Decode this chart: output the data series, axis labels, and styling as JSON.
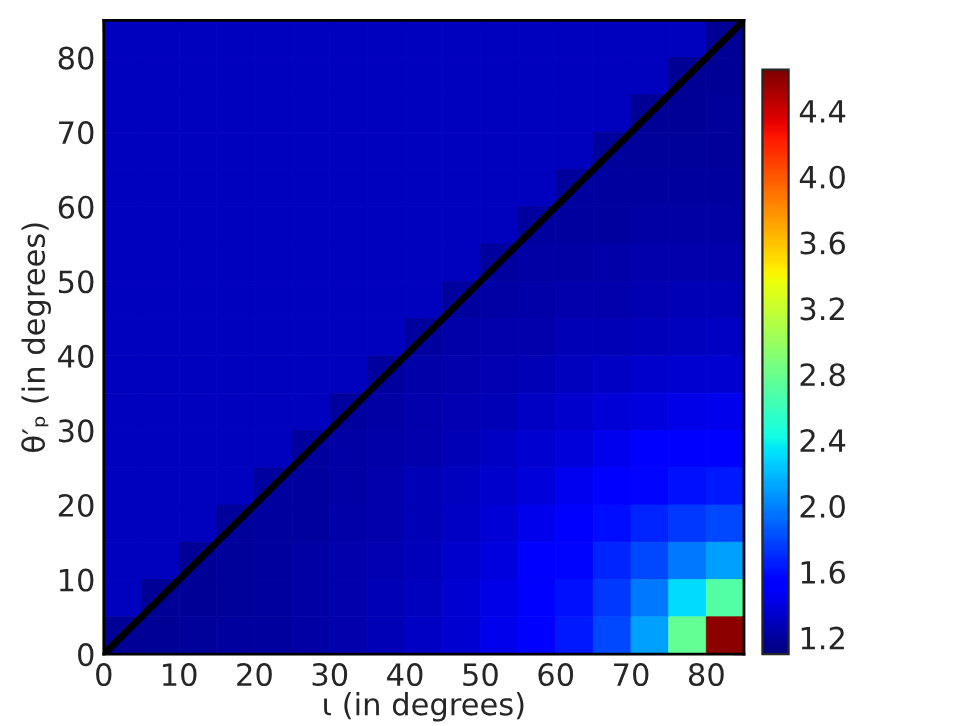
{
  "chart_data": {
    "type": "heatmap",
    "xlabel": "ι (in degrees)",
    "ylabel": "θ′ₚ (in degrees)",
    "x": [
      2.5,
      7.5,
      12.5,
      17.5,
      22.5,
      27.5,
      32.5,
      37.5,
      42.5,
      47.5,
      52.5,
      57.5,
      62.5,
      67.5,
      72.5,
      77.5,
      82.5
    ],
    "y": [
      82.5,
      77.5,
      72.5,
      67.5,
      62.5,
      57.5,
      52.5,
      47.5,
      42.5,
      37.5,
      32.5,
      27.5,
      22.5,
      17.5,
      12.5,
      7.5,
      2.5
    ],
    "cells": [
      [
        1.3,
        1.3,
        1.3,
        1.3,
        1.3,
        1.3,
        1.3,
        1.3,
        1.3,
        1.3,
        1.3,
        1.3,
        1.3,
        1.3,
        1.3,
        1.3,
        1.17
      ],
      [
        1.3,
        1.3,
        1.3,
        1.3,
        1.3,
        1.3,
        1.3,
        1.3,
        1.3,
        1.3,
        1.3,
        1.3,
        1.3,
        1.3,
        1.3,
        1.18,
        1.18
      ],
      [
        1.3,
        1.3,
        1.3,
        1.3,
        1.3,
        1.3,
        1.3,
        1.3,
        1.3,
        1.3,
        1.3,
        1.3,
        1.3,
        1.3,
        1.18,
        1.18,
        1.19
      ],
      [
        1.3,
        1.3,
        1.3,
        1.3,
        1.3,
        1.3,
        1.3,
        1.3,
        1.3,
        1.3,
        1.3,
        1.3,
        1.3,
        1.19,
        1.19,
        1.19,
        1.19
      ],
      [
        1.3,
        1.3,
        1.3,
        1.3,
        1.3,
        1.3,
        1.3,
        1.3,
        1.3,
        1.3,
        1.3,
        1.3,
        1.2,
        1.2,
        1.2,
        1.21,
        1.21
      ],
      [
        1.3,
        1.3,
        1.3,
        1.3,
        1.3,
        1.3,
        1.3,
        1.3,
        1.3,
        1.3,
        1.3,
        1.2,
        1.21,
        1.21,
        1.22,
        1.22,
        1.22
      ],
      [
        1.3,
        1.3,
        1.3,
        1.3,
        1.3,
        1.3,
        1.3,
        1.3,
        1.3,
        1.3,
        1.21,
        1.22,
        1.22,
        1.23,
        1.24,
        1.24,
        1.24
      ],
      [
        1.3,
        1.3,
        1.3,
        1.3,
        1.3,
        1.3,
        1.3,
        1.3,
        1.3,
        1.21,
        1.22,
        1.23,
        1.24,
        1.25,
        1.26,
        1.27,
        1.27
      ],
      [
        1.3,
        1.3,
        1.3,
        1.3,
        1.3,
        1.3,
        1.3,
        1.3,
        1.21,
        1.23,
        1.24,
        1.25,
        1.27,
        1.28,
        1.29,
        1.3,
        1.31
      ],
      [
        1.3,
        1.3,
        1.3,
        1.3,
        1.3,
        1.3,
        1.3,
        1.21,
        1.23,
        1.24,
        1.26,
        1.28,
        1.3,
        1.32,
        1.34,
        1.35,
        1.36
      ],
      [
        1.3,
        1.3,
        1.3,
        1.3,
        1.3,
        1.3,
        1.21,
        1.22,
        1.24,
        1.26,
        1.28,
        1.31,
        1.34,
        1.37,
        1.4,
        1.43,
        1.44
      ],
      [
        1.3,
        1.3,
        1.3,
        1.3,
        1.3,
        1.2,
        1.22,
        1.23,
        1.25,
        1.28,
        1.31,
        1.35,
        1.39,
        1.44,
        1.5,
        1.52,
        1.54
      ],
      [
        1.3,
        1.3,
        1.3,
        1.3,
        1.2,
        1.21,
        1.22,
        1.24,
        1.27,
        1.3,
        1.34,
        1.39,
        1.46,
        1.52,
        1.57,
        1.61,
        1.64
      ],
      [
        1.3,
        1.3,
        1.3,
        1.19,
        1.2,
        1.21,
        1.23,
        1.25,
        1.28,
        1.32,
        1.37,
        1.44,
        1.52,
        1.59,
        1.67,
        1.75,
        1.8
      ],
      [
        1.3,
        1.3,
        1.18,
        1.19,
        1.2,
        1.22,
        1.24,
        1.26,
        1.29,
        1.34,
        1.4,
        1.5,
        1.57,
        1.67,
        1.8,
        1.96,
        2.1
      ],
      [
        1.3,
        1.18,
        1.18,
        1.19,
        1.21,
        1.22,
        1.24,
        1.27,
        1.3,
        1.35,
        1.43,
        1.52,
        1.61,
        1.75,
        1.96,
        2.31,
        2.7
      ],
      [
        1.17,
        1.18,
        1.19,
        1.2,
        1.21,
        1.22,
        1.24,
        1.27,
        1.31,
        1.36,
        1.44,
        1.54,
        1.64,
        1.8,
        2.1,
        2.77,
        4.6
      ]
    ],
    "clim": [
      1.1,
      4.65
    ],
    "cticks": [
      1.2,
      1.6,
      {
        "value": 2,
        "label": "2.0"
      },
      2.4,
      2.8,
      3.2,
      3.6,
      {
        "value": 4,
        "label": "4.0"
      },
      4.4
    ],
    "xlim": [
      0,
      85
    ],
    "ylim": [
      0,
      85
    ],
    "xticks": [
      0,
      10,
      20,
      30,
      40,
      50,
      60,
      70,
      80
    ],
    "yticks": [
      0,
      10,
      20,
      30,
      40,
      50,
      60,
      70,
      80
    ],
    "series": [
      {
        "type": "line",
        "color": "#000000",
        "x": [
          0,
          85
        ],
        "values": [
          0,
          85
        ]
      }
    ]
  }
}
